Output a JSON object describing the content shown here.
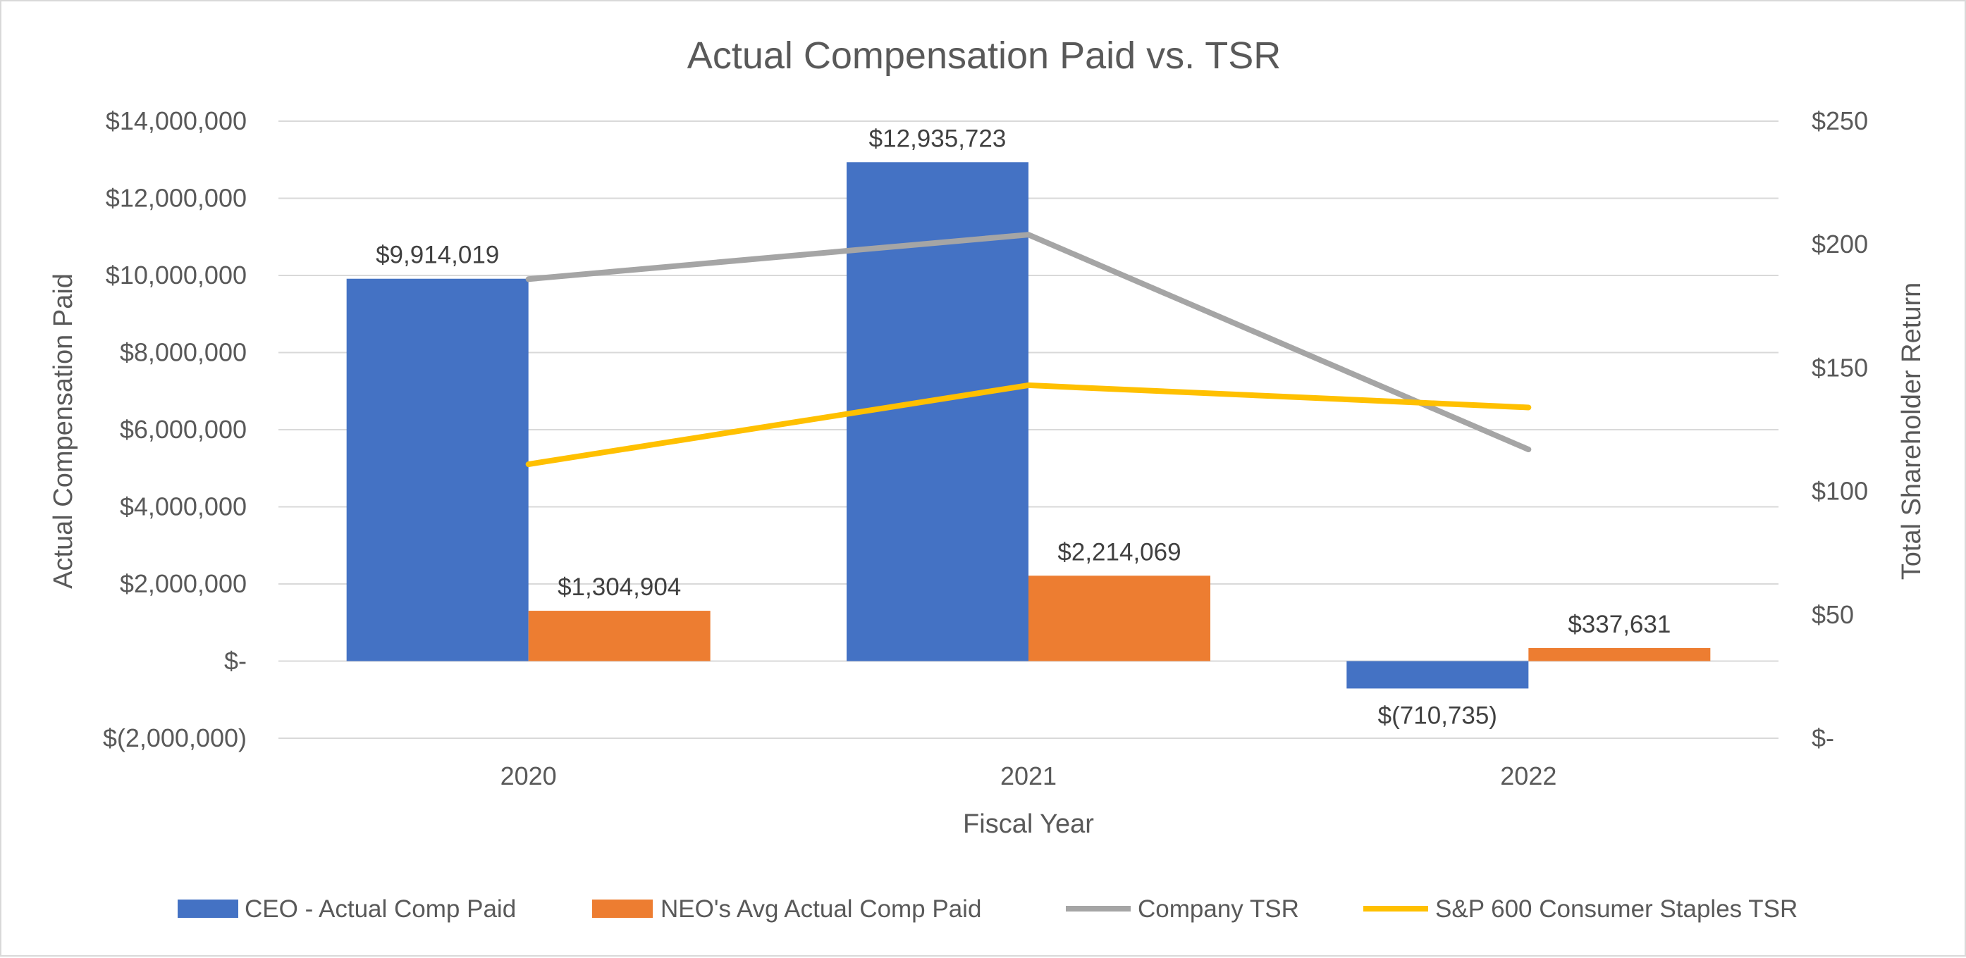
{
  "chart_data": {
    "type": "bar",
    "title": "Actual Compensation Paid vs. TSR",
    "xlabel": "Fiscal Year",
    "ylabel": "Actual Compensation Paid",
    "y2label": "Total Shareholder Return",
    "categories": [
      "2020",
      "2021",
      "2022"
    ],
    "ylim": [
      -2000000,
      14000000
    ],
    "y2lim": [
      0,
      250
    ],
    "yticks": [
      -2000000,
      0,
      2000000,
      4000000,
      6000000,
      8000000,
      10000000,
      12000000,
      14000000
    ],
    "ytick_labels": [
      "$(2,000,000)",
      "$-",
      "$2,000,000",
      "$4,000,000",
      "$6,000,000",
      "$8,000,000",
      "$10,000,000",
      "$12,000,000",
      "$14,000,000"
    ],
    "y2ticks": [
      0,
      50,
      100,
      150,
      200,
      250
    ],
    "y2tick_labels": [
      "$-",
      "$50",
      "$100",
      "$150",
      "$200",
      "$250"
    ],
    "grid": true,
    "legend_position": "bottom",
    "series": [
      {
        "name": "CEO - Actual Comp Paid",
        "kind": "bar",
        "axis": "left",
        "color": "#4472c4",
        "values": [
          9914019,
          12935723,
          -710735
        ],
        "labels": [
          "$9,914,019",
          "$12,935,723",
          "$(710,735)"
        ]
      },
      {
        "name": "NEO's Avg Actual Comp Paid",
        "kind": "bar",
        "axis": "left",
        "color": "#ed7d31",
        "values": [
          1304904,
          2214069,
          337631
        ],
        "labels": [
          "$1,304,904",
          "$2,214,069",
          "$337,631"
        ]
      },
      {
        "name": "Company TSR",
        "kind": "line",
        "axis": "right",
        "color": "#a5a5a5",
        "values": [
          186,
          204,
          117
        ]
      },
      {
        "name": "S&P 600 Consumer Staples TSR",
        "kind": "line",
        "axis": "right",
        "color": "#ffc000",
        "values": [
          111,
          143,
          134
        ]
      }
    ]
  }
}
